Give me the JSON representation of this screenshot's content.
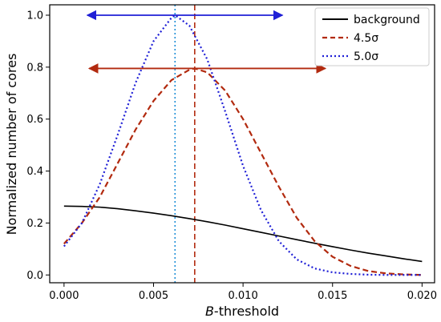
{
  "chart_data": {
    "type": "line",
    "xlabel_italic": "B",
    "xlabel_rest": "-threshold",
    "ylabel": "Normalized number of cores",
    "xlim": [
      -0.0008,
      0.0207
    ],
    "ylim": [
      -0.03,
      1.04
    ],
    "xticks": [
      0.0,
      0.005,
      0.01,
      0.015,
      0.02
    ],
    "xtick_labels": [
      "0.000",
      "0.005",
      "0.010",
      "0.015",
      "0.020"
    ],
    "yticks": [
      0.0,
      0.2,
      0.4,
      0.6,
      0.8,
      1.0
    ],
    "ytick_labels": [
      "0.0",
      "0.2",
      "0.4",
      "0.6",
      "0.8",
      "1.0"
    ],
    "grid": false,
    "legend_position": "top-right",
    "series": [
      {
        "name": "background",
        "legend_label": "background",
        "color": "#000000",
        "dash": "solid",
        "x": [
          0.0,
          0.001,
          0.002,
          0.003,
          0.004,
          0.005,
          0.006,
          0.007,
          0.008,
          0.009,
          0.01,
          0.011,
          0.012,
          0.013,
          0.014,
          0.015,
          0.016,
          0.017,
          0.018,
          0.019,
          0.02
        ],
        "y": [
          0.265,
          0.264,
          0.261,
          0.255,
          0.247,
          0.238,
          0.228,
          0.217,
          0.205,
          0.192,
          0.178,
          0.164,
          0.15,
          0.136,
          0.122,
          0.109,
          0.096,
          0.084,
          0.073,
          0.062,
          0.052
        ]
      },
      {
        "name": "4.5σ",
        "legend_label": "4.5σ",
        "color": "#b22a0f",
        "dash": "dashed",
        "x": [
          0.0,
          0.001,
          0.002,
          0.003,
          0.004,
          0.005,
          0.006,
          0.007,
          0.0073,
          0.008,
          0.009,
          0.01,
          0.011,
          0.012,
          0.013,
          0.014,
          0.015,
          0.016,
          0.017,
          0.018,
          0.019,
          0.02
        ],
        "y": [
          0.12,
          0.2,
          0.3,
          0.43,
          0.56,
          0.67,
          0.75,
          0.79,
          0.795,
          0.78,
          0.71,
          0.6,
          0.47,
          0.34,
          0.22,
          0.13,
          0.07,
          0.035,
          0.015,
          0.006,
          0.002,
          0.0
        ]
      },
      {
        "name": "5.0σ",
        "legend_label": "5.0σ",
        "color": "#1f1fd6",
        "dash": "dotted",
        "x": [
          0.0,
          0.001,
          0.002,
          0.003,
          0.004,
          0.005,
          0.006,
          0.0062,
          0.007,
          0.008,
          0.009,
          0.01,
          0.011,
          0.012,
          0.013,
          0.014,
          0.015,
          0.016,
          0.017,
          0.018,
          0.019,
          0.02
        ],
        "y": [
          0.11,
          0.2,
          0.35,
          0.54,
          0.74,
          0.9,
          0.99,
          1.0,
          0.96,
          0.83,
          0.63,
          0.42,
          0.25,
          0.13,
          0.06,
          0.025,
          0.01,
          0.004,
          0.001,
          0.0,
          0.0,
          0.0
        ]
      }
    ],
    "vertical_lines": [
      {
        "x": 0.0062,
        "color": "#1f8fd6",
        "dash": "dotted"
      },
      {
        "x": 0.0073,
        "color": "#b22a0f",
        "dash": "dashed"
      }
    ],
    "range_arrows": [
      {
        "x_start": 0.0013,
        "x_end": 0.0122,
        "y": 1.0,
        "color": "#1f1fd6"
      },
      {
        "x_start": 0.0014,
        "x_end": 0.0146,
        "y": 0.795,
        "color": "#b22a0f"
      }
    ]
  }
}
